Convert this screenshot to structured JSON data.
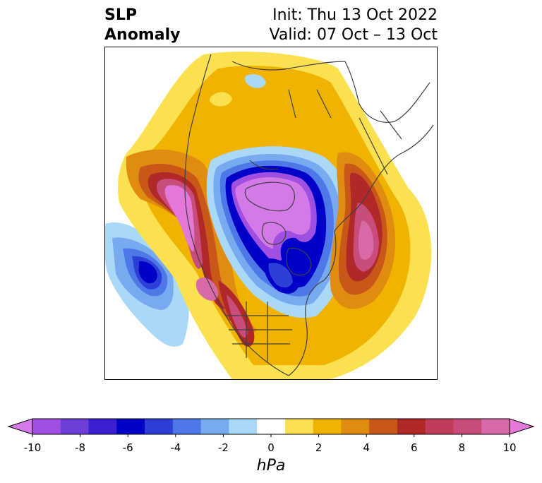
{
  "title": {
    "left_line1": "SLP",
    "left_line2": "Anomaly",
    "right_line1": "Init: Thu 13 Oct 2022",
    "right_line2": "Valid: 07 Oct – 13 Oct"
  },
  "colorbar": {
    "unit": "hPa",
    "tick_labels": [
      "-10",
      "-8",
      "-6",
      "-4",
      "-2",
      "0",
      "2",
      "4",
      "6",
      "8",
      "10"
    ],
    "min": -10,
    "max": 10,
    "colors": [
      "#d479e8",
      "#a050e0",
      "#6e3fd8",
      "#3a20d0",
      "#0000c8",
      "#2c40d8",
      "#4e78e8",
      "#78aaf0",
      "#aad8f8",
      "#ffffff",
      "#fbe050",
      "#f0b400",
      "#e08c10",
      "#c85818",
      "#b02828",
      "#c03c5a",
      "#c84c7c",
      "#d86aa8",
      "#e478d8"
    ],
    "extend": "both"
  },
  "map": {
    "projection": "north-polar-stereographic",
    "variable": "sea level pressure anomaly",
    "colors": {
      "neg_strong": "#d479e8",
      "neg_blue_dark": "#0000c8",
      "neg_blue": "#4e78e8",
      "neg_light": "#aad8f8",
      "pos_yellow": "#fbe050",
      "pos_orange": "#f0b400",
      "pos_dark_orange": "#e08c10",
      "pos_red": "#b02828",
      "pos_magenta": "#e478d8",
      "coastline": "#404040"
    }
  }
}
